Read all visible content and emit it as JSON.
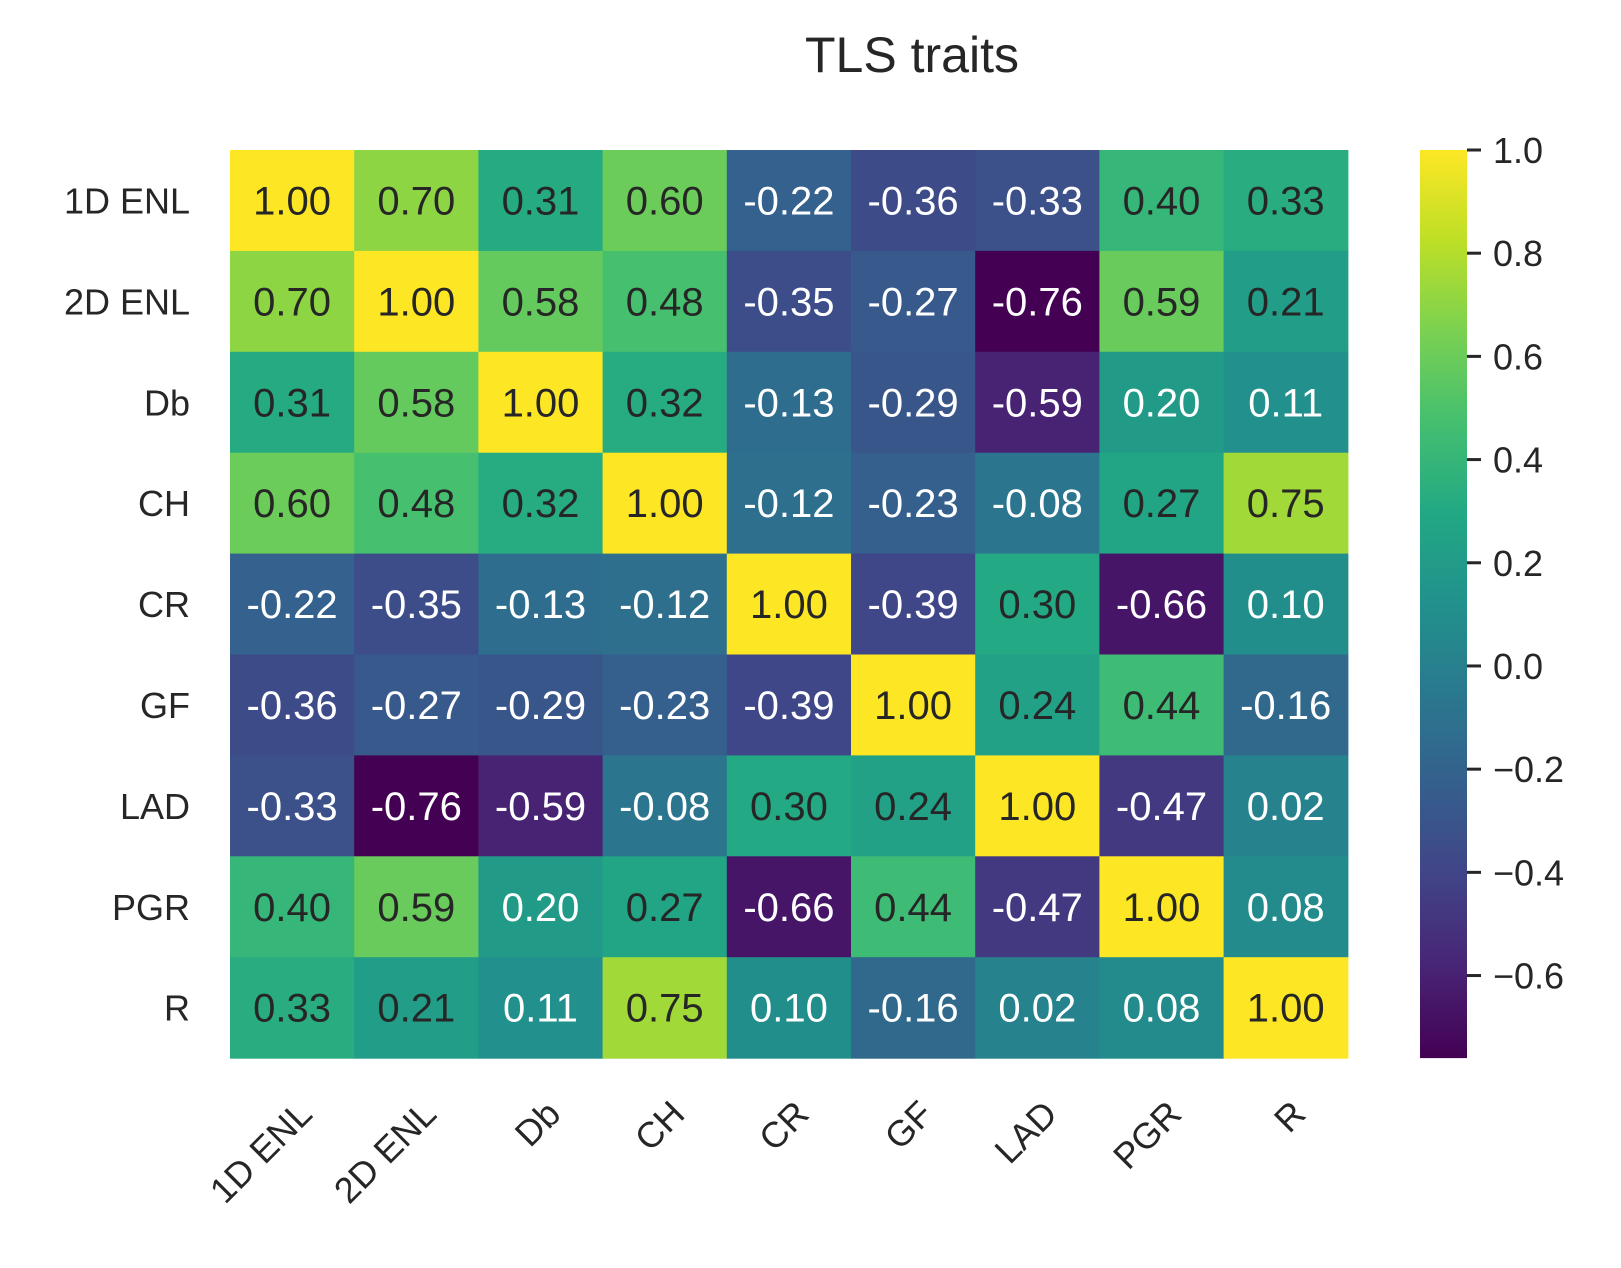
{
  "chart_data": {
    "type": "heatmap",
    "title": "TLS traits",
    "rows": [
      "1D ENL",
      "2D ENL",
      "Db",
      "CH",
      "CR",
      "GF",
      "LAD",
      "PGR",
      "R"
    ],
    "columns": [
      "1D ENL",
      "2D ENL",
      "Db",
      "CH",
      "CR",
      "GF",
      "LAD",
      "PGR",
      "R"
    ],
    "values": [
      [
        1.0,
        0.7,
        0.31,
        0.6,
        -0.22,
        -0.36,
        -0.33,
        0.4,
        0.33
      ],
      [
        0.7,
        1.0,
        0.58,
        0.48,
        -0.35,
        -0.27,
        -0.76,
        0.59,
        0.21
      ],
      [
        0.31,
        0.58,
        1.0,
        0.32,
        -0.13,
        -0.29,
        -0.59,
        0.2,
        0.11
      ],
      [
        0.6,
        0.48,
        0.32,
        1.0,
        -0.12,
        -0.23,
        -0.08,
        0.27,
        0.75
      ],
      [
        -0.22,
        -0.35,
        -0.13,
        -0.12,
        1.0,
        -0.39,
        0.3,
        -0.66,
        0.1
      ],
      [
        -0.36,
        -0.27,
        -0.29,
        -0.23,
        -0.39,
        1.0,
        0.24,
        0.44,
        -0.16
      ],
      [
        -0.33,
        -0.76,
        -0.59,
        -0.08,
        0.3,
        0.24,
        1.0,
        -0.47,
        0.02
      ],
      [
        0.4,
        0.59,
        0.2,
        0.27,
        -0.66,
        0.44,
        -0.47,
        1.0,
        0.08
      ],
      [
        0.33,
        0.21,
        0.11,
        0.75,
        0.1,
        -0.16,
        0.02,
        0.08,
        1.0
      ]
    ],
    "cell_labels": [
      [
        "1.00",
        "0.70",
        "0.31",
        "0.60",
        "-0.22",
        "-0.36",
        "-0.33",
        "0.40",
        "0.33"
      ],
      [
        "0.70",
        "1.00",
        "0.58",
        "0.48",
        "-0.35",
        "-0.27",
        "-0.76",
        "0.59",
        "0.21"
      ],
      [
        "0.31",
        "0.58",
        "1.00",
        "0.32",
        "-0.13",
        "-0.29",
        "-0.59",
        "0.20",
        "0.11"
      ],
      [
        "0.60",
        "0.48",
        "0.32",
        "1.00",
        "-0.12",
        "-0.23",
        "-0.08",
        "0.27",
        "0.75"
      ],
      [
        "-0.22",
        "-0.35",
        "-0.13",
        "-0.12",
        "1.00",
        "-0.39",
        "0.30",
        "-0.66",
        "0.10"
      ],
      [
        "-0.36",
        "-0.27",
        "-0.29",
        "-0.23",
        "-0.39",
        "1.00",
        "0.24",
        "0.44",
        "-0.16"
      ],
      [
        "-0.33",
        "-0.76",
        "-0.59",
        "-0.08",
        "0.30",
        "0.24",
        "1.00",
        "-0.47",
        "0.02"
      ],
      [
        "0.40",
        "0.59",
        "0.20",
        "0.27",
        "-0.66",
        "0.44",
        "-0.47",
        "1.00",
        "0.08"
      ],
      [
        "0.33",
        "0.21",
        "0.11",
        "0.75",
        "0.10",
        "-0.16",
        "0.02",
        "0.08",
        "1.00"
      ]
    ],
    "colormap": "viridis",
    "vmin": -0.76,
    "vmax": 1.0,
    "colorbar": {
      "ticks": [
        1.0,
        0.8,
        0.6,
        0.4,
        0.2,
        0.0,
        -0.2,
        -0.4,
        -0.6
      ],
      "tick_labels": [
        "1.0",
        "0.8",
        "0.6",
        "0.4",
        "0.2",
        "0.0",
        "−0.2",
        "−0.4",
        "−0.6"
      ]
    },
    "text_colors": {
      "dark": "#262626",
      "light": "#ffffff"
    }
  }
}
